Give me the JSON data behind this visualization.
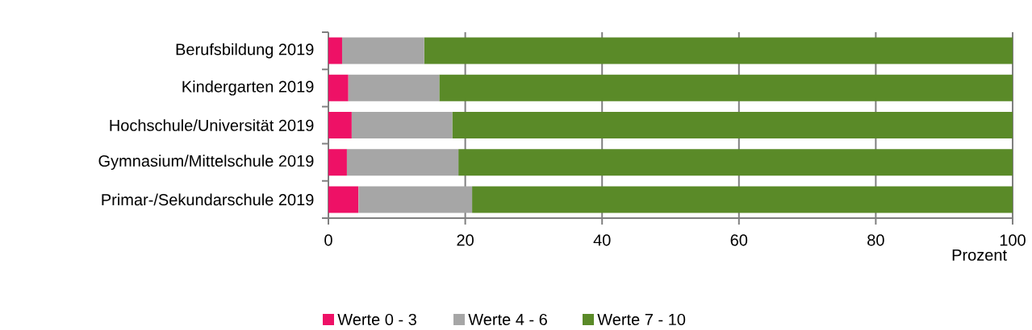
{
  "chart_data": {
    "type": "bar",
    "orientation": "horizontal",
    "stacked": true,
    "categories": [
      "Berufsbildung 2019",
      "Kindergarten 2019",
      "Hochschule/Universität 2019",
      "Gymnasium/Mittelschule 2019",
      "Primar-/Sekundarschule 2019"
    ],
    "series": [
      {
        "name": "Werte 0 - 3",
        "color": "#ee1166",
        "values": [
          2.0,
          2.9,
          3.4,
          2.7,
          4.4
        ]
      },
      {
        "name": "Werte 4 - 6",
        "color": "#a6a6a6",
        "values": [
          12.0,
          13.3,
          14.7,
          16.3,
          16.6
        ]
      },
      {
        "name": "Werte 7 - 10",
        "color": "#5a8a28",
        "values": [
          86.0,
          83.8,
          81.9,
          81.0,
          79.0
        ]
      }
    ],
    "xlabel": "Prozent",
    "xlim": [
      0,
      100
    ],
    "xticks": [
      0,
      20,
      40,
      60,
      80,
      100
    ],
    "grid": "x",
    "legend": "bottom"
  }
}
